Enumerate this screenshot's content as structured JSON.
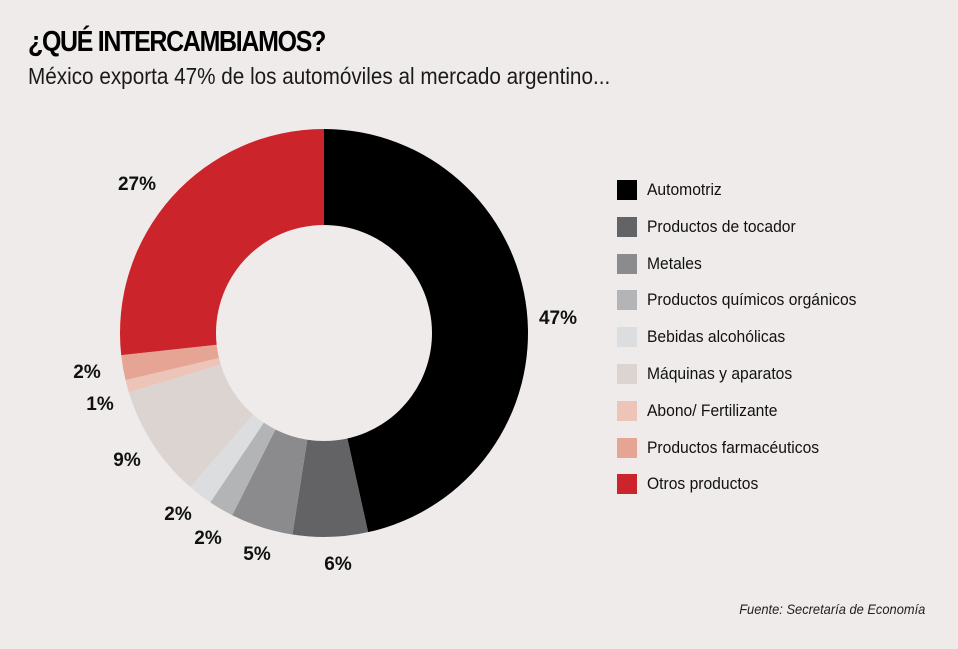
{
  "header": {
    "title": "¿QUÉ INTERCAMBIAMOS?",
    "subtitle": "México exporta 47% de los automóviles al mercado argentino..."
  },
  "source": "Fuente: Secretaría de Economía",
  "chart_data": {
    "type": "pie",
    "variant": "donut",
    "title": "¿QUÉ INTERCAMBIAMOS?",
    "subtitle": "México exporta 47% de los automóviles al mercado argentino...",
    "legend_position": "right",
    "start": "top, clockwise",
    "slices": [
      {
        "name": "Automotriz",
        "value": 47,
        "label": "47%",
        "color": "#000000"
      },
      {
        "name": "Productos de tocador",
        "value": 6,
        "label": "6%",
        "color": "#636366"
      },
      {
        "name": "Metales",
        "value": 5,
        "label": "5%",
        "color": "#8b8b8d"
      },
      {
        "name": "Productos químicos orgánicos",
        "value": 2,
        "label": "2%",
        "color": "#b3b4b5"
      },
      {
        "name": "Bebidas alcohólicas",
        "value": 2,
        "label": "2%",
        "color": "#dcdddf"
      },
      {
        "name": "Máquinas y aparatos",
        "value": 9,
        "label": "9%",
        "color": "#dbd4d1"
      },
      {
        "name": "Abono/ Fertilizante",
        "value": 1,
        "label": "1%",
        "color": "#ecc5b8"
      },
      {
        "name": "Productos farmacéuticos",
        "value": 2,
        "label": "2%",
        "color": "#e6a594"
      },
      {
        "name": "Otros productos",
        "value": 27,
        "label": "27%",
        "color": "#cc242b"
      }
    ]
  }
}
